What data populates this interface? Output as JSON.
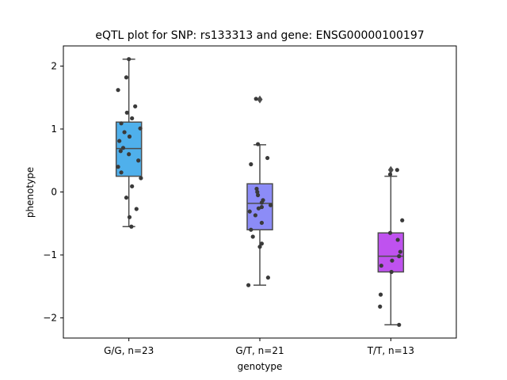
{
  "chart_data": {
    "type": "box",
    "title": "eQTL plot for SNP: rs133313 and gene: ENSG00000100197",
    "xlabel": "genotype",
    "ylabel": "phenotype",
    "ylim": [
      -2.32,
      2.32
    ],
    "yticks": [
      -2,
      -1,
      0,
      1,
      2
    ],
    "ytick_labels": [
      "−2",
      "−1",
      "0",
      "1",
      "2"
    ],
    "grid": false,
    "point_color": "#3a3a3a",
    "line_color": "#4d4d4d",
    "categories": [
      "G/G, n=23",
      "G/T, n=21",
      "T/T, n=13"
    ],
    "groups": [
      {
        "category": "G/G, n=23",
        "color": "#4fb0ec",
        "q1": 0.25,
        "median": 0.69,
        "q3": 1.11,
        "whisker_low": -0.55,
        "whisker_high": 2.11,
        "outliers": [],
        "points": [
          {
            "x": 0.0,
            "y": 2.11
          },
          {
            "x": -0.04,
            "y": 1.82
          },
          {
            "x": -0.17,
            "y": 1.62
          },
          {
            "x": 0.1,
            "y": 1.36
          },
          {
            "x": -0.03,
            "y": 1.26
          },
          {
            "x": 0.05,
            "y": 1.17
          },
          {
            "x": -0.12,
            "y": 1.09
          },
          {
            "x": 0.18,
            "y": 1.01
          },
          {
            "x": -0.07,
            "y": 0.95
          },
          {
            "x": 0.01,
            "y": 0.88
          },
          {
            "x": -0.15,
            "y": 0.81
          },
          {
            "x": -0.09,
            "y": 0.7
          },
          {
            "x": -0.13,
            "y": 0.65
          },
          {
            "x": 0.0,
            "y": 0.6
          },
          {
            "x": 0.15,
            "y": 0.5
          },
          {
            "x": -0.17,
            "y": 0.4
          },
          {
            "x": -0.12,
            "y": 0.31
          },
          {
            "x": 0.19,
            "y": 0.22
          },
          {
            "x": 0.05,
            "y": 0.09
          },
          {
            "x": -0.04,
            "y": -0.09
          },
          {
            "x": 0.12,
            "y": -0.27
          },
          {
            "x": 0.01,
            "y": -0.4
          },
          {
            "x": 0.04,
            "y": -0.55
          }
        ]
      },
      {
        "category": "G/T, n=21",
        "color": "#8c8cf7",
        "q1": -0.6,
        "median": -0.18,
        "q3": 0.13,
        "whisker_low": -1.48,
        "whisker_high": 0.75,
        "outliers": [
          1.47
        ],
        "points": [
          {
            "x": -0.06,
            "y": 1.48
          },
          {
            "x": 0.12,
            "y": 0.54
          },
          {
            "x": -0.14,
            "y": 0.44
          },
          {
            "x": -0.03,
            "y": 0.76
          },
          {
            "x": -0.05,
            "y": 0.05
          },
          {
            "x": -0.04,
            "y": 0.0
          },
          {
            "x": -0.03,
            "y": -0.05
          },
          {
            "x": 0.05,
            "y": -0.13
          },
          {
            "x": 0.03,
            "y": -0.17
          },
          {
            "x": 0.17,
            "y": -0.21
          },
          {
            "x": 0.03,
            "y": -0.24
          },
          {
            "x": -0.16,
            "y": -0.31
          },
          {
            "x": -0.07,
            "y": -0.37
          },
          {
            "x": 0.03,
            "y": -0.49
          },
          {
            "x": -0.14,
            "y": -0.6
          },
          {
            "x": -0.11,
            "y": -0.71
          },
          {
            "x": 0.03,
            "y": -0.82
          },
          {
            "x": 0.0,
            "y": -0.87
          },
          {
            "x": 0.13,
            "y": -1.36
          },
          {
            "x": -0.18,
            "y": -1.48
          },
          {
            "x": -0.02,
            "y": -0.26
          }
        ]
      },
      {
        "category": "T/T, n=13",
        "color": "#bf52ef",
        "q1": -1.27,
        "median": -1.02,
        "q3": -0.65,
        "whisker_low": -2.11,
        "whisker_high": 0.25,
        "outliers": [
          0.35
        ],
        "points": [
          {
            "x": 0.1,
            "y": 0.35
          },
          {
            "x": -0.01,
            "y": 0.28
          },
          {
            "x": 0.18,
            "y": -0.45
          },
          {
            "x": -0.01,
            "y": -0.65
          },
          {
            "x": 0.11,
            "y": -0.76
          },
          {
            "x": 0.15,
            "y": -0.95
          },
          {
            "x": 0.13,
            "y": -1.02
          },
          {
            "x": 0.02,
            "y": -1.09
          },
          {
            "x": -0.15,
            "y": -1.17
          },
          {
            "x": 0.01,
            "y": -1.27
          },
          {
            "x": -0.16,
            "y": -1.63
          },
          {
            "x": -0.17,
            "y": -1.82
          },
          {
            "x": 0.13,
            "y": -2.11
          }
        ]
      }
    ]
  }
}
